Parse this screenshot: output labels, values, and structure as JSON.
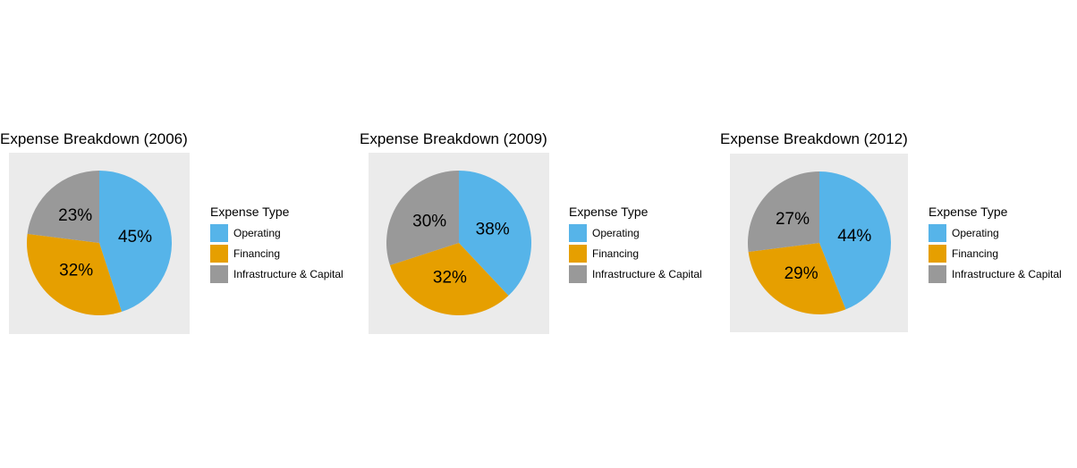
{
  "colors": {
    "operating": "#56b4e9",
    "financing": "#e69f00",
    "infrastructure": "#999999",
    "panel_background": "#ebebeb"
  },
  "legend": {
    "title": "Expense Type",
    "items": [
      {
        "label": "Operating",
        "color": "#56b4e9"
      },
      {
        "label": "Financing",
        "color": "#e69f00"
      },
      {
        "label": "Infrastructure & Capital",
        "color": "#999999"
      }
    ]
  },
  "chart_data": [
    {
      "type": "pie",
      "title": "Expense Breakdown (2006)",
      "categories": [
        "Operating",
        "Financing",
        "Infrastructure & Capital"
      ],
      "values": [
        45,
        32,
        23
      ],
      "labels": [
        "45%",
        "32%",
        "23%"
      ],
      "legend_title": "Expense Type",
      "legend_position": "right"
    },
    {
      "type": "pie",
      "title": "Expense Breakdown (2009)",
      "categories": [
        "Operating",
        "Financing",
        "Infrastructure & Capital"
      ],
      "values": [
        38,
        32,
        30
      ],
      "labels": [
        "38%",
        "32%",
        "30%"
      ],
      "legend_title": "Expense Type",
      "legend_position": "right"
    },
    {
      "type": "pie",
      "title": "Expense Breakdown (2012)",
      "categories": [
        "Operating",
        "Financing",
        "Infrastructure & Capital"
      ],
      "values": [
        44,
        29,
        27
      ],
      "labels": [
        "44%",
        "29%",
        "27%"
      ],
      "legend_title": "Expense Type",
      "legend_position": "right"
    }
  ]
}
